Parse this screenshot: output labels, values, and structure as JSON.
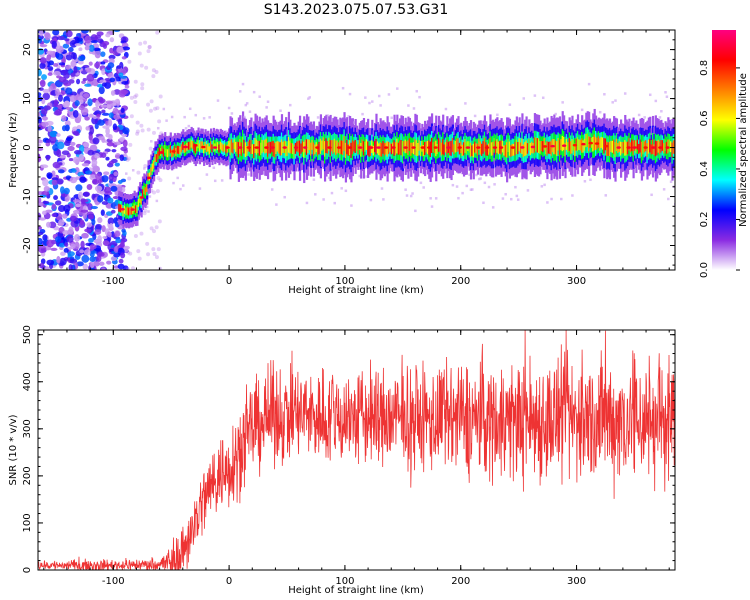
{
  "title": "S143.2023.075.07.53.G31",
  "chart_data": [
    {
      "type": "heatmap",
      "xlabel": "Height of straight line (km)",
      "ylabel": "Frequency (Hz)",
      "xlim": [
        -165,
        385
      ],
      "ylim": [
        -25,
        24
      ],
      "xticks": [
        -100,
        0,
        100,
        200,
        300
      ],
      "yticks": [
        -20,
        -10,
        0,
        10,
        20
      ],
      "colorbar": {
        "label": "Normalized spectral amplitude",
        "range": [
          0,
          0.95
        ],
        "ticks": [
          "0.0",
          "0.2",
          "0.4",
          "0.6",
          "0.8"
        ],
        "colormap": [
          "#ffffff",
          "#8a2be2",
          "#0000ff",
          "#00ffff",
          "#00ff00",
          "#ffff00",
          "#ff7f00",
          "#ff0000",
          "#ff0080"
        ]
      },
      "ridge": {
        "x": [
          -95,
          -90,
          -85,
          -80,
          -75,
          -70,
          -65,
          -60,
          -55,
          -50,
          -40,
          -30,
          -20,
          0,
          50,
          100,
          150,
          200,
          250,
          300,
          315,
          330,
          385
        ],
        "y": [
          -12,
          -13,
          -13,
          -12,
          -10,
          -7,
          -3,
          -1,
          -1,
          -1,
          0,
          0.5,
          0,
          0,
          0,
          0,
          0,
          0,
          0,
          0.5,
          1,
          0,
          0
        ]
      }
    },
    {
      "type": "line",
      "xlabel": "Height of straight line (km)",
      "ylabel": "SNR (10 * v/v)",
      "xlim": [
        -165,
        385
      ],
      "ylim": [
        0,
        510
      ],
      "xticks": [
        -100,
        0,
        100,
        200,
        300
      ],
      "yticks": [
        0,
        100,
        200,
        300,
        400,
        500
      ],
      "color": "#ee3333",
      "trend": {
        "x": [
          -165,
          -100,
          -60,
          -45,
          -40,
          -30,
          -20,
          -10,
          0,
          10,
          20,
          30,
          40,
          60,
          100,
          150,
          200,
          250,
          300,
          350,
          385
        ],
        "y": [
          10,
          10,
          12,
          20,
          40,
          100,
          160,
          200,
          220,
          260,
          300,
          320,
          330,
          330,
          325,
          320,
          320,
          320,
          320,
          320,
          320
        ]
      },
      "noise": {
        "x": [
          -165,
          -60,
          -40,
          0,
          30,
          150,
          250,
          385
        ],
        "amplitude": [
          5,
          7,
          30,
          45,
          50,
          55,
          65,
          70
        ]
      }
    }
  ]
}
